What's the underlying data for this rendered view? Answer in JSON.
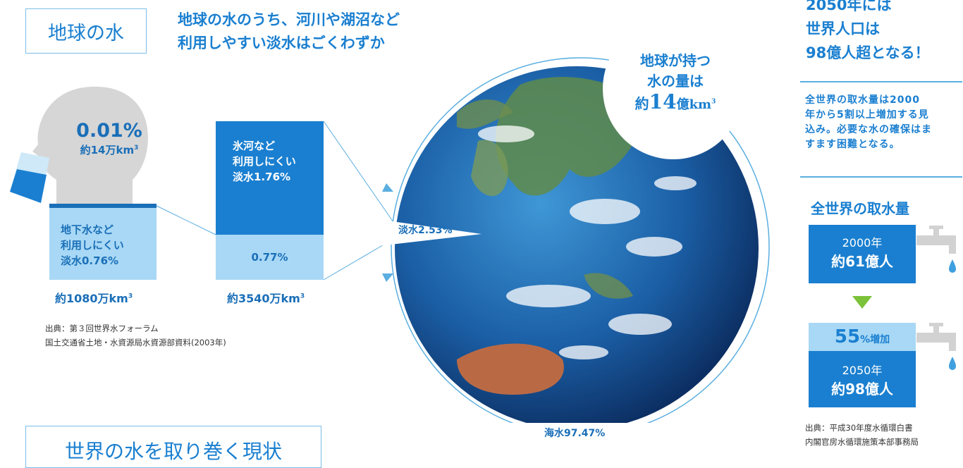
{
  "section1": {
    "title": "地球の水",
    "headline": "地球の水のうち、河川や湖沼など\n利用しやすい淡水はごくわずか",
    "bubble": {
      "line1": "地球が持つ",
      "line2": "水の量は",
      "prefix": "約",
      "number": "14",
      "suffix": "億km",
      "sup": "3"
    },
    "head_stat": {
      "percent": "0.01%",
      "volume": "約14万km",
      "sup": "3"
    },
    "groundwater": {
      "l1": "地下水など",
      "l2": "利用しにくい",
      "l3": "淡水0.76%",
      "volume": "約1080万km",
      "sup": "3"
    },
    "glacier": {
      "l1": "氷河など",
      "l2": "利用しにくい",
      "l3": "淡水1.76%",
      "lower": "0.77%",
      "volume": "約3540万km",
      "sup": "3"
    },
    "fresh_label": "淡水2.53%",
    "sea_label": "海水97.47%",
    "source_line1": "出典：第３回世界水フォーラム",
    "source_line2": "国土交通省土地・水資源局水資源部資料(2003年)"
  },
  "section2": {
    "title": "世界の水を取り巻く現状"
  },
  "right": {
    "headline": "2050年には\n世界人口は\n98億人超となる！",
    "body": "全世界の取水量は2000\n年から5割以上増加する見\n込み。必要な水の確保はま\nすます困難となる。",
    "chart_title": "全世界の取水量",
    "y2000_label": "2000年",
    "y2000_value": "約61億人",
    "increase_num": "55",
    "increase_text": "%増加",
    "y2050_label": "2050年",
    "y2050_value": "約98億人",
    "source_line1": "出典：平成30年度水循環白書",
    "source_line2": "内閣官房水循環施策本部事務局"
  },
  "colors": {
    "accent": "#1a7fd0",
    "light": "#a8d8f5",
    "bubble_gray": "#d3d3d3"
  }
}
